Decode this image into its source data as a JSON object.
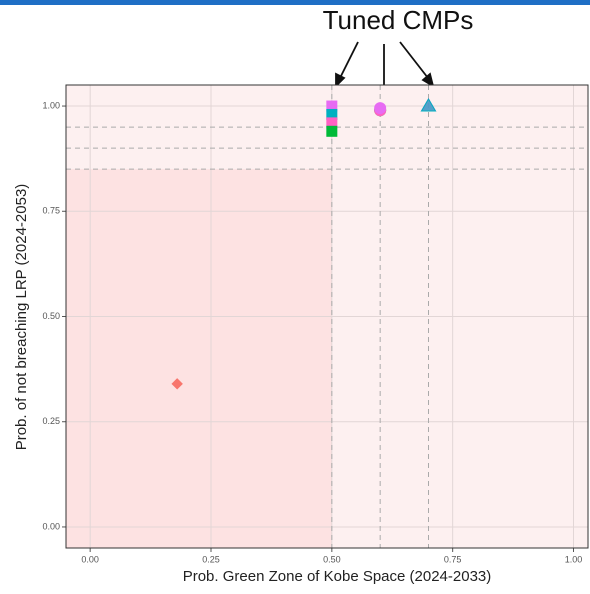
{
  "chart_data": {
    "type": "scatter",
    "annotation": "Tuned CMPs",
    "xlabel": "Prob. Green Zone of Kobe Space (2024-2033)",
    "ylabel": "Prob. of not breaching LRP (2024-2053)",
    "xlim": [
      -0.05,
      1.03
    ],
    "ylim": [
      -0.05,
      1.05
    ],
    "xticks": [
      {
        "value": 0,
        "label": "0.00"
      },
      {
        "value": 0.25,
        "label": "0.25"
      },
      {
        "value": 0.5,
        "label": "0.50"
      },
      {
        "value": 0.75,
        "label": "0.75"
      },
      {
        "value": 1,
        "label": "1.00"
      }
    ],
    "yticks": [
      {
        "value": 0,
        "label": "0.00"
      },
      {
        "value": 0.25,
        "label": "0.25"
      },
      {
        "value": 0.5,
        "label": "0.50"
      },
      {
        "value": 0.75,
        "label": "0.75"
      },
      {
        "value": 1,
        "label": "1.00"
      }
    ],
    "hlines": [
      0.95,
      0.9,
      0.85
    ],
    "vlines": [
      0.5,
      0.6,
      0.7
    ],
    "grid": true,
    "background_color": "#fdf0f0",
    "shade_color": "#fde2e2",
    "series": [
      {
        "marker": "diamond",
        "colors": [
          "#f8766d"
        ],
        "x": [
          0.18
        ],
        "values": [
          0.34
        ]
      },
      {
        "marker": "square",
        "colors": [
          "#e76bf3",
          "#00b0c0",
          "#ff61c3",
          "#00ba38"
        ],
        "x": [
          0.5,
          0.5,
          0.5,
          0.5
        ],
        "values": [
          1.0,
          0.98,
          0.96,
          0.94
        ]
      },
      {
        "marker": "circle",
        "colors": [
          "#00ba38",
          "#ff61c3",
          "#e76bf3"
        ],
        "x": [
          0.6,
          0.6,
          0.6
        ],
        "values": [
          0.99,
          0.99,
          0.995
        ]
      },
      {
        "marker": "triangle",
        "colors": [
          "#619cff",
          "#ff61c3",
          "#00b0c0"
        ],
        "x": [
          0.7,
          0.7,
          0.7
        ],
        "values": [
          1.0,
          1.0,
          1.0
        ]
      }
    ]
  }
}
